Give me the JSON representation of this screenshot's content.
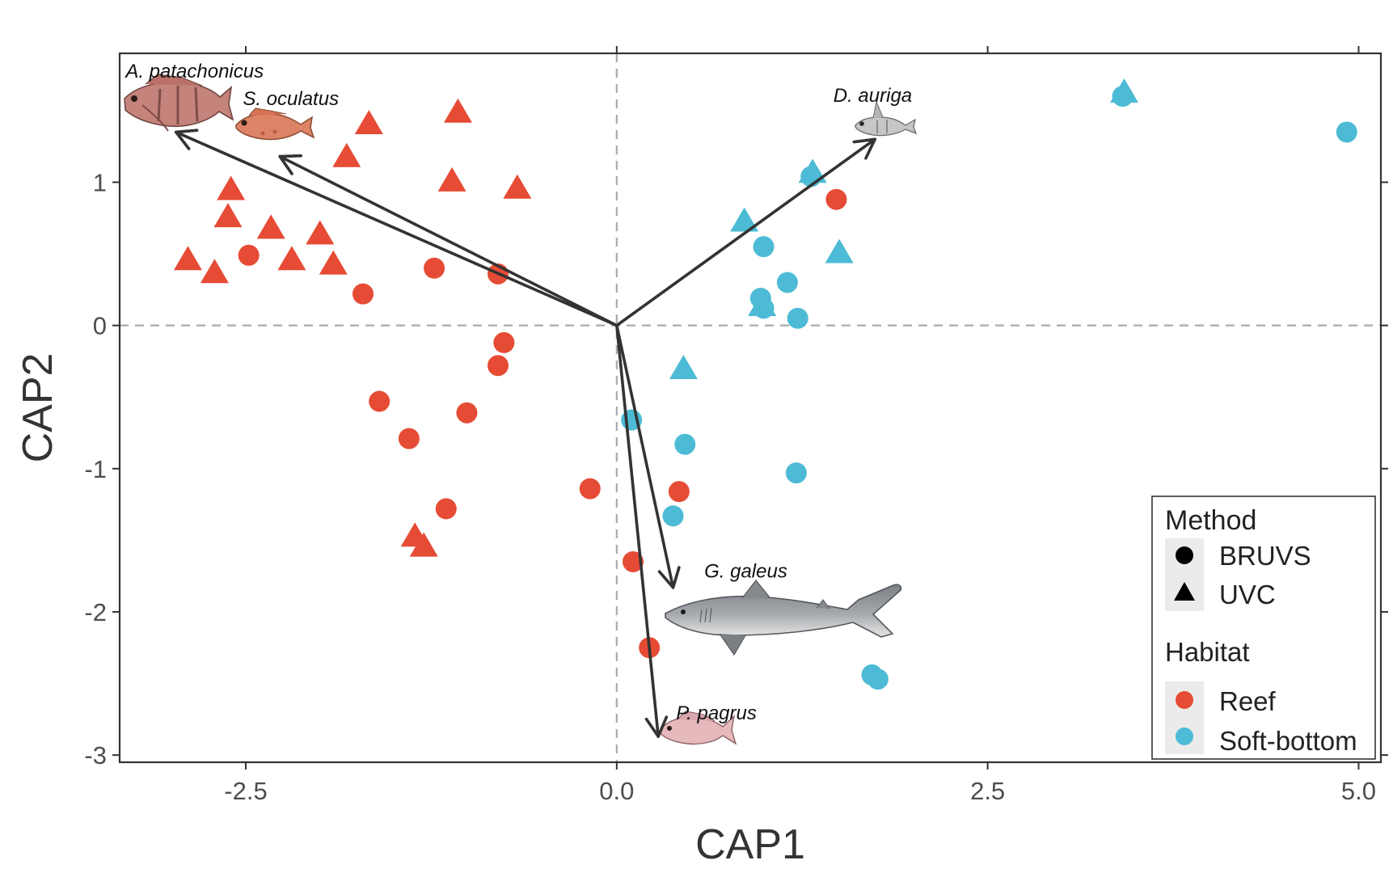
{
  "chart_data": {
    "type": "scatter",
    "xlabel": "CAP1",
    "ylabel": "CAP2",
    "xlim": [
      -3.35,
      5.15
    ],
    "ylim": [
      -3.05,
      1.9
    ],
    "xticks": [
      -2.5,
      0.0,
      2.5,
      5.0
    ],
    "xtick_labels": [
      "-2.5",
      "0.0",
      "2.5",
      "5.0"
    ],
    "yticks": [
      -3,
      -2,
      -1,
      0,
      1
    ],
    "ytick_labels": [
      "-3",
      "-2",
      "-1",
      "0",
      "1"
    ],
    "grid": false,
    "reference_lines": {
      "x": 0,
      "y": 0,
      "style": "dashed"
    },
    "colors": {
      "Reef": "#E64B35",
      "Soft-bottom": "#4DBBD5",
      "arrow": "#333333",
      "reference": "#aaaaaa"
    },
    "legend": {
      "placement": "bottom-right",
      "method_title": "Method",
      "method_items": [
        {
          "label": "BRUVS",
          "shape": "circle"
        },
        {
          "label": "UVC",
          "shape": "triangle"
        }
      ],
      "habitat_title": "Habitat",
      "habitat_items": [
        {
          "label": "Reef",
          "color": "#E64B35"
        },
        {
          "label": "Soft-bottom",
          "color": "#4DBBD5"
        }
      ]
    },
    "series": [
      {
        "habitat": "Reef",
        "method": "BRUVS",
        "points": [
          {
            "x": -2.48,
            "y": 0.49
          },
          {
            "x": -1.23,
            "y": 0.4
          },
          {
            "x": -0.8,
            "y": 0.36
          },
          {
            "x": -1.71,
            "y": 0.22
          },
          {
            "x": -0.76,
            "y": -0.12
          },
          {
            "x": -0.8,
            "y": -0.28
          },
          {
            "x": -1.6,
            "y": -0.53
          },
          {
            "x": -1.01,
            "y": -0.61
          },
          {
            "x": -1.4,
            "y": -0.79
          },
          {
            "x": -0.18,
            "y": -1.14
          },
          {
            "x": 0.42,
            "y": -1.16
          },
          {
            "x": -1.15,
            "y": -1.28
          },
          {
            "x": 0.11,
            "y": -1.65
          },
          {
            "x": 0.22,
            "y": -2.25
          },
          {
            "x": 1.48,
            "y": 0.88
          }
        ]
      },
      {
        "habitat": "Reef",
        "method": "UVC",
        "points": [
          {
            "x": -1.07,
            "y": 1.48
          },
          {
            "x": -1.67,
            "y": 1.4
          },
          {
            "x": -1.82,
            "y": 1.17
          },
          {
            "x": -1.11,
            "y": 1.0
          },
          {
            "x": -0.67,
            "y": 0.95
          },
          {
            "x": -2.6,
            "y": 0.94
          },
          {
            "x": -2.62,
            "y": 0.75
          },
          {
            "x": -2.33,
            "y": 0.67
          },
          {
            "x": -2.0,
            "y": 0.63
          },
          {
            "x": -2.89,
            "y": 0.45
          },
          {
            "x": -2.19,
            "y": 0.45
          },
          {
            "x": -1.91,
            "y": 0.42
          },
          {
            "x": -2.71,
            "y": 0.36
          },
          {
            "x": -1.36,
            "y": -1.48
          },
          {
            "x": -1.3,
            "y": -1.55
          }
        ]
      },
      {
        "habitat": "Soft-bottom",
        "method": "BRUVS",
        "points": [
          {
            "x": 3.41,
            "y": 1.6
          },
          {
            "x": 4.92,
            "y": 1.35
          },
          {
            "x": 1.31,
            "y": 1.04
          },
          {
            "x": 0.99,
            "y": 0.55
          },
          {
            "x": 1.15,
            "y": 0.3
          },
          {
            "x": 0.97,
            "y": 0.19
          },
          {
            "x": 0.99,
            "y": 0.12
          },
          {
            "x": 1.22,
            "y": 0.05
          },
          {
            "x": 0.1,
            "y": -0.66
          },
          {
            "x": 0.46,
            "y": -0.83
          },
          {
            "x": 1.21,
            "y": -1.03
          },
          {
            "x": 0.38,
            "y": -1.33
          },
          {
            "x": 1.72,
            "y": -2.44
          },
          {
            "x": 1.76,
            "y": -2.47
          }
        ]
      },
      {
        "habitat": "Soft-bottom",
        "method": "UVC",
        "points": [
          {
            "x": 3.42,
            "y": 1.62
          },
          {
            "x": 1.32,
            "y": 1.06
          },
          {
            "x": 0.86,
            "y": 0.72
          },
          {
            "x": 1.5,
            "y": 0.5
          },
          {
            "x": 0.98,
            "y": 0.13
          },
          {
            "x": 0.45,
            "y": -0.31
          }
        ]
      }
    ],
    "vectors": [
      {
        "species": "A. patachonicus",
        "x": -2.97,
        "y": 1.35
      },
      {
        "species": "S. oculatus",
        "x": -2.27,
        "y": 1.18
      },
      {
        "species": "D. auriga",
        "x": 1.74,
        "y": 1.3
      },
      {
        "species": "G. galeus",
        "x": 0.38,
        "y": -1.83
      },
      {
        "species": "P. pagrus",
        "x": 0.28,
        "y": -2.87
      }
    ],
    "annotations": [
      {
        "text": "A. patachonicus",
        "x": -3.31,
        "y": 1.73,
        "anchor": "start"
      },
      {
        "text": "S. oculatus",
        "x": -2.52,
        "y": 1.54,
        "anchor": "start"
      },
      {
        "text": "D. auriga",
        "x": 1.46,
        "y": 1.56,
        "anchor": "start"
      },
      {
        "text": "G. galeus",
        "x": 0.59,
        "y": -1.76,
        "anchor": "start"
      },
      {
        "text": "P. pagrus",
        "x": 0.4,
        "y": -2.75,
        "anchor": "start"
      }
    ]
  }
}
